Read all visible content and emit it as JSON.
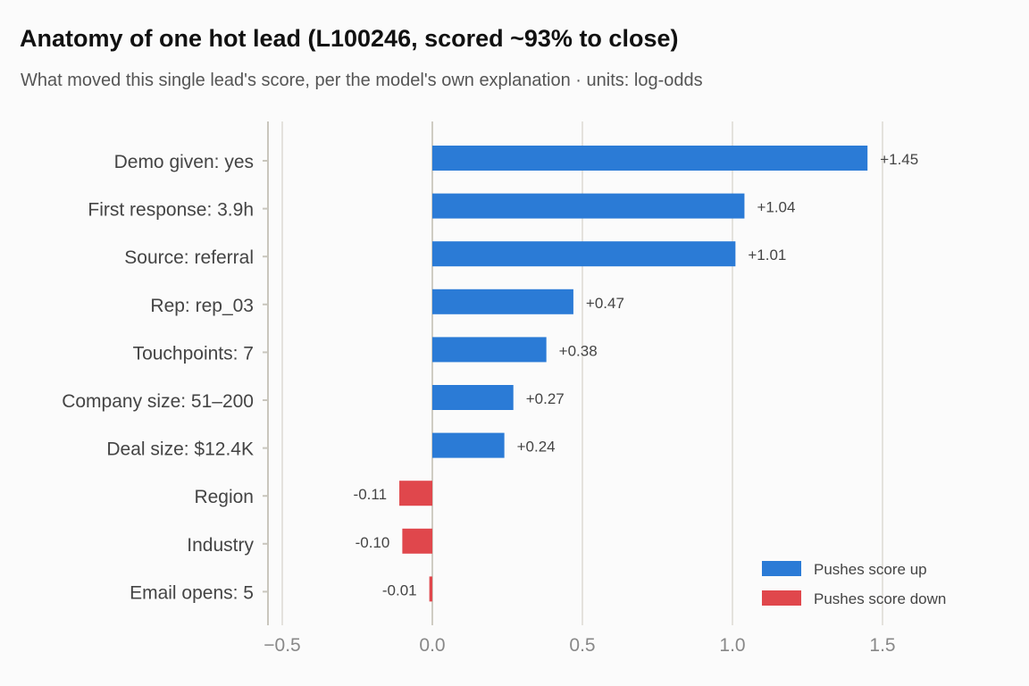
{
  "header": {
    "title": "Anatomy of one hot lead (L100246, scored ~93% to close)",
    "subtitle": "What moved this single lead's score, per the model's own explanation · units: log-odds"
  },
  "colors": {
    "positive": "#2b7bd6",
    "negative": "#e0474c",
    "grid": "#dcdad3",
    "axis": "#c9c6bd"
  },
  "chart_data": {
    "type": "bar",
    "orientation": "horizontal",
    "categories": [
      "Demo given: yes",
      "First response: 3.9h",
      "Source: referral",
      "Rep: rep_03",
      "Touchpoints: 7",
      "Company size: 51–200",
      "Deal size: $12.4K",
      "Region",
      "Industry",
      "Email opens: 5"
    ],
    "values": [
      1.45,
      1.04,
      1.01,
      0.47,
      0.38,
      0.27,
      0.24,
      -0.11,
      -0.1,
      -0.01
    ],
    "value_labels": [
      "+1.45",
      "+1.04",
      "+1.01",
      "+0.47",
      "+0.38",
      "+0.27",
      "+0.24",
      "-0.11",
      "-0.10",
      "-0.01"
    ],
    "xlim": [
      -0.55,
      1.8
    ],
    "xticks": [
      -0.5,
      0.0,
      0.5,
      1.0,
      1.5
    ],
    "xtick_labels": [
      "−0.5",
      "0.0",
      "0.5",
      "1.0",
      "1.5"
    ],
    "grid": "vertical",
    "legend": {
      "placement": "bottom-right",
      "entries": [
        {
          "label": "Pushes score up",
          "color": "#2b7bd6"
        },
        {
          "label": "Pushes score down",
          "color": "#e0474c"
        }
      ]
    }
  }
}
